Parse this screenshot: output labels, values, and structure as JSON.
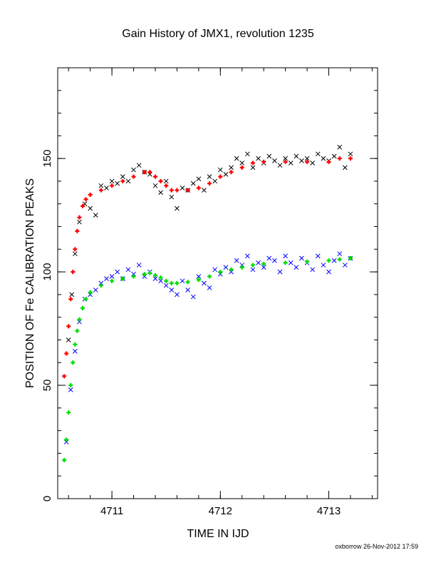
{
  "chart_data": {
    "type": "scatter",
    "title": "Gain History of JMX1, revolution 1235",
    "xlabel": "TIME IN IJD",
    "ylabel": "POSITION OF Fe CALIBRATION PEAKS",
    "xlim": [
      4710.5,
      4713.45
    ],
    "ylim": [
      0,
      190
    ],
    "x_ticks": [
      4711,
      4712,
      4713
    ],
    "y_ticks": [
      0,
      50,
      100,
      150
    ],
    "x_minor_step": 0.2,
    "y_minor_step": 10,
    "grid": false,
    "legend": "none",
    "footer": "oxborrow 26-Nov-2012 17:59",
    "series": [
      {
        "marker": "x",
        "color": "#000000",
        "x": [
          4710.6,
          4710.63,
          4710.66,
          4710.7,
          4710.75,
          4710.8,
          4710.85,
          4710.9,
          4710.95,
          4711.0,
          4711.05,
          4711.1,
          4711.15,
          4711.2,
          4711.25,
          4711.3,
          4711.35,
          4711.4,
          4711.45,
          4711.5,
          4711.55,
          4711.6,
          4711.65,
          4711.7,
          4711.75,
          4711.8,
          4711.85,
          4711.9,
          4711.95,
          4712.0,
          4712.05,
          4712.1,
          4712.15,
          4712.2,
          4712.25,
          4712.3,
          4712.35,
          4712.4,
          4712.45,
          4712.5,
          4712.55,
          4712.6,
          4712.65,
          4712.7,
          4712.75,
          4712.8,
          4712.85,
          4712.9,
          4712.95,
          4713.0,
          4713.05,
          4713.1,
          4713.15,
          4713.2
        ],
        "y": [
          70,
          90,
          108,
          122,
          130,
          128,
          125,
          138,
          137,
          140,
          139,
          142,
          140,
          145,
          147,
          144,
          143,
          138,
          135,
          140,
          133,
          128,
          137,
          136,
          139,
          141,
          136,
          142,
          140,
          145,
          143,
          146,
          150,
          148,
          152,
          146,
          150,
          148,
          151,
          149,
          147,
          150,
          148,
          151,
          149,
          150,
          148,
          152,
          150,
          149,
          151,
          155,
          146,
          152
        ]
      },
      {
        "marker": "+",
        "color": "#ff0000",
        "x": [
          4710.56,
          4710.58,
          4710.6,
          4710.62,
          4710.64,
          4710.66,
          4710.68,
          4710.7,
          4710.73,
          4710.76,
          4710.8,
          4710.9,
          4711.0,
          4711.1,
          4711.2,
          4711.3,
          4711.35,
          4711.4,
          4711.45,
          4711.5,
          4711.55,
          4711.6,
          4711.7,
          4711.8,
          4711.9,
          4712.0,
          4712.1,
          4712.2,
          4712.3,
          4712.4,
          4712.6,
          4712.8,
          4713.0,
          4713.1,
          4713.2
        ],
        "y": [
          54,
          64,
          76,
          88,
          100,
          110,
          118,
          124,
          129,
          132,
          134,
          136,
          138,
          140,
          142,
          144,
          144,
          142,
          140,
          138,
          136,
          136,
          136,
          137,
          139,
          142,
          144,
          146,
          148,
          148.5,
          148.5,
          148.5,
          148.5,
          150,
          150
        ]
      },
      {
        "marker": "x",
        "color": "#0000ff",
        "x": [
          4710.58,
          4710.62,
          4710.66,
          4710.7,
          4710.75,
          4710.8,
          4710.85,
          4710.9,
          4710.95,
          4711.0,
          4711.05,
          4711.1,
          4711.15,
          4711.2,
          4711.25,
          4711.3,
          4711.35,
          4711.4,
          4711.45,
          4711.5,
          4711.55,
          4711.6,
          4711.65,
          4711.7,
          4711.75,
          4711.8,
          4711.85,
          4711.9,
          4711.95,
          4712.0,
          4712.05,
          4712.1,
          4712.15,
          4712.2,
          4712.25,
          4712.3,
          4712.35,
          4712.4,
          4712.45,
          4712.5,
          4712.55,
          4712.6,
          4712.65,
          4712.7,
          4712.75,
          4712.8,
          4712.85,
          4712.9,
          4712.95,
          4713.0,
          4713.05,
          4713.1,
          4713.15,
          4713.2
        ],
        "y": [
          25,
          48,
          65,
          78,
          88,
          90,
          92,
          95,
          97,
          98,
          100,
          97,
          101,
          99,
          103,
          98,
          100,
          97,
          96,
          94,
          92,
          90,
          96,
          92,
          89,
          98,
          95,
          93,
          101,
          99,
          102,
          100,
          105,
          103,
          107,
          101,
          104,
          102,
          106,
          105,
          100,
          107,
          104,
          102,
          106,
          104,
          101,
          107,
          103,
          100,
          105,
          108,
          103,
          106
        ]
      },
      {
        "marker": "+",
        "color": "#00dd00",
        "x": [
          4710.56,
          4710.58,
          4710.6,
          4710.62,
          4710.64,
          4710.66,
          4710.68,
          4710.7,
          4710.73,
          4710.76,
          4710.8,
          4710.9,
          4711.0,
          4711.1,
          4711.2,
          4711.3,
          4711.35,
          4711.4,
          4711.45,
          4711.5,
          4711.55,
          4711.6,
          4711.7,
          4711.8,
          4711.9,
          4712.0,
          4712.1,
          4712.2,
          4712.3,
          4712.4,
          4712.6,
          4712.8,
          4713.0,
          4713.1,
          4713.2
        ],
        "y": [
          17,
          26,
          38,
          50,
          60,
          68,
          74,
          79,
          84,
          88,
          91,
          94,
          96,
          97,
          98,
          99,
          99.5,
          98.5,
          97.5,
          96,
          95,
          95,
          95.5,
          96.5,
          98,
          100,
          101,
          102,
          103,
          103.5,
          104,
          104.5,
          105,
          105.5,
          106
        ]
      }
    ]
  }
}
